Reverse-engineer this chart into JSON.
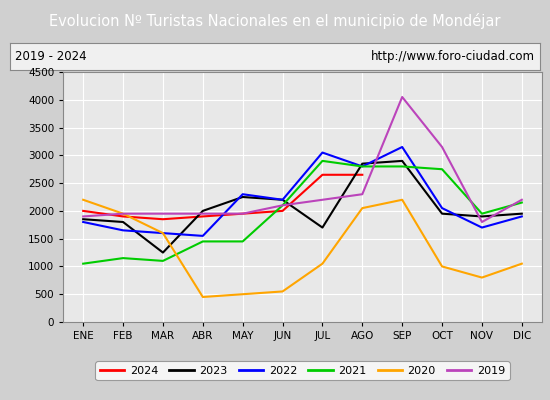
{
  "title": "Evolucion Nº Turistas Nacionales en el municipio de Mondéjar",
  "subtitle_left": "2019 - 2024",
  "subtitle_right": "http://www.foro-ciudad.com",
  "title_bg_color": "#4472c4",
  "title_text_color": "#ffffff",
  "months": [
    "ENE",
    "FEB",
    "MAR",
    "ABR",
    "MAY",
    "JUN",
    "JUL",
    "AGO",
    "SEP",
    "OCT",
    "NOV",
    "DIC"
  ],
  "ylim": [
    0,
    4500
  ],
  "yticks": [
    0,
    500,
    1000,
    1500,
    2000,
    2500,
    3000,
    3500,
    4000,
    4500
  ],
  "series": {
    "2024": {
      "color": "#ff0000",
      "values": [
        2000,
        1900,
        1850,
        1900,
        1950,
        2000,
        2650,
        2650,
        null,
        null,
        null,
        null
      ]
    },
    "2023": {
      "color": "#000000",
      "values": [
        1850,
        1800,
        1250,
        2000,
        2250,
        2200,
        1700,
        2850,
        2900,
        1950,
        1900,
        1950
      ]
    },
    "2022": {
      "color": "#0000ff",
      "values": [
        1800,
        1650,
        1600,
        1550,
        2300,
        2200,
        3050,
        2800,
        3150,
        2050,
        1700,
        1900
      ]
    },
    "2021": {
      "color": "#00cc00",
      "values": [
        1050,
        1150,
        1100,
        1450,
        1450,
        2100,
        2900,
        2800,
        2800,
        2750,
        1950,
        2150
      ]
    },
    "2020": {
      "color": "#ffa500",
      "values": [
        2200,
        1950,
        1600,
        450,
        500,
        550,
        1050,
        2050,
        2200,
        1000,
        800,
        1050
      ]
    },
    "2019": {
      "color": "#bb44bb",
      "values": [
        1900,
        1950,
        1950,
        1950,
        1950,
        2100,
        2200,
        2300,
        4050,
        3150,
        1800,
        2200
      ]
    }
  },
  "legend_order": [
    "2024",
    "2023",
    "2022",
    "2021",
    "2020",
    "2019"
  ],
  "figure_bg_color": "#d0d0d0",
  "plot_bg_color": "#e8e8e8",
  "grid_color": "#ffffff",
  "subtitle_bg_color": "#f0f0f0",
  "subtitle_border_color": "#888888"
}
